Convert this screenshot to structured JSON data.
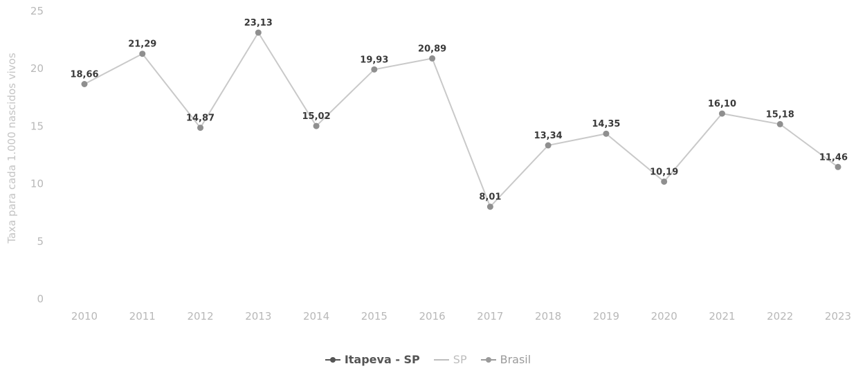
{
  "chart_data": {
    "type": "line",
    "ylabel": "Taxa para cada 1.000 nascidos vivos",
    "xlabel": "",
    "ylim": [
      0,
      25
    ],
    "yticks": [
      "0",
      "5",
      "10",
      "15",
      "20",
      "25"
    ],
    "categories": [
      "2010",
      "2011",
      "2012",
      "2013",
      "2014",
      "2015",
      "2016",
      "2017",
      "2018",
      "2019",
      "2020",
      "2021",
      "2022",
      "2023"
    ],
    "series": [
      {
        "name": "Itapeva - SP",
        "values": [
          18.66,
          21.29,
          14.87,
          23.13,
          15.02,
          19.93,
          20.89,
          8.01,
          13.34,
          14.35,
          10.19,
          16.1,
          15.18,
          11.46
        ],
        "labels": [
          "18,66",
          "21,29",
          "14,87",
          "23,13",
          "15,02",
          "19,93",
          "20,89",
          "8,01",
          "13,34",
          "14,35",
          "10,19",
          "16,10",
          "15,18",
          "11,46"
        ]
      }
    ],
    "legend": [
      {
        "name": "Itapeva - SP",
        "color": "#555555"
      },
      {
        "name": "SP",
        "color": "#bdbdbd"
      },
      {
        "name": "Brasil",
        "color": "#9a9a9a"
      }
    ],
    "line_color": "#c9c9c9",
    "point_color": "#8f8f8f",
    "grid": false,
    "legend_placement": "bottom-center"
  }
}
